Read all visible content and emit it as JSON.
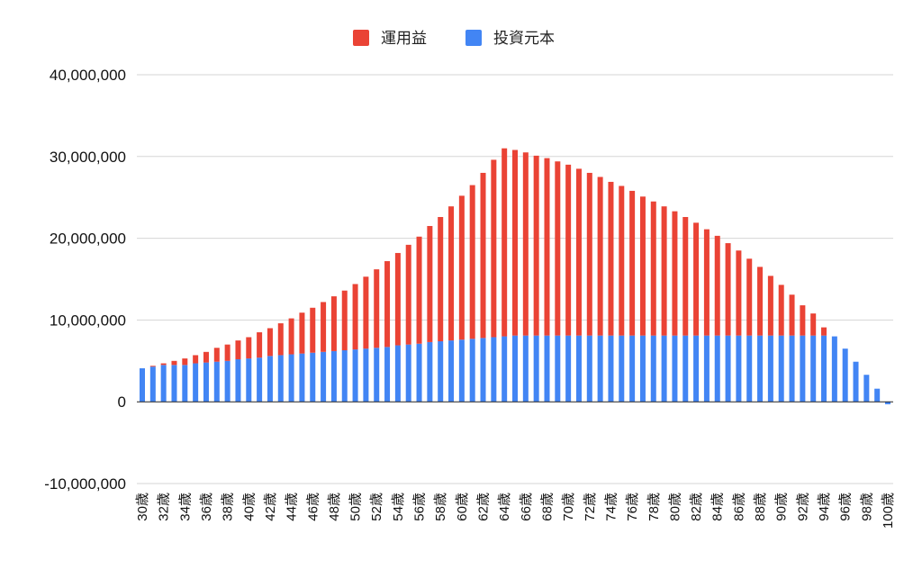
{
  "chart_data": {
    "type": "bar",
    "stacked": true,
    "title": "",
    "xlabel": "",
    "ylabel": "",
    "legend_position": "top",
    "grid": true,
    "ylim": [
      -10000000,
      40000000
    ],
    "yticks": [
      -10000000,
      0,
      10000000,
      20000000,
      30000000,
      40000000
    ],
    "ytick_labels": [
      "-10,000,000",
      "0",
      "10,000,000",
      "20,000,000",
      "30,000,000",
      "40,000,000"
    ],
    "categories": [
      "30歳",
      "31歳",
      "32歳",
      "33歳",
      "34歳",
      "35歳",
      "36歳",
      "37歳",
      "38歳",
      "39歳",
      "40歳",
      "41歳",
      "42歳",
      "43歳",
      "44歳",
      "45歳",
      "46歳",
      "47歳",
      "48歳",
      "49歳",
      "50歳",
      "51歳",
      "52歳",
      "53歳",
      "54歳",
      "55歳",
      "56歳",
      "57歳",
      "58歳",
      "59歳",
      "60歳",
      "61歳",
      "62歳",
      "63歳",
      "64歳",
      "65歳",
      "66歳",
      "67歳",
      "68歳",
      "69歳",
      "70歳",
      "71歳",
      "72歳",
      "73歳",
      "74歳",
      "75歳",
      "76歳",
      "77歳",
      "78歳",
      "79歳",
      "80歳",
      "81歳",
      "82歳",
      "83歳",
      "84歳",
      "85歳",
      "86歳",
      "87歳",
      "88歳",
      "89歳",
      "90歳",
      "91歳",
      "92歳",
      "93歳",
      "94歳",
      "95歳",
      "96歳",
      "97歳",
      "98歳",
      "99歳",
      "100歳"
    ],
    "xtick_labels": [
      "30歳",
      "32歳",
      "34歳",
      "36歳",
      "38歳",
      "40歳",
      "42歳",
      "44歳",
      "46歳",
      "48歳",
      "50歳",
      "52歳",
      "54歳",
      "56歳",
      "58歳",
      "60歳",
      "62歳",
      "64歳",
      "66歳",
      "68歳",
      "70歳",
      "72歳",
      "74歳",
      "76歳",
      "78歳",
      "80歳",
      "82歳",
      "84歳",
      "86歳",
      "88歳",
      "90歳",
      "92歳",
      "94歳",
      "96歳",
      "98歳",
      "100歳"
    ],
    "series": [
      {
        "name": "投資元本",
        "color": "#4285f4",
        "values": [
          4100000,
          4300000,
          4500000,
          4500000,
          4500000,
          4700000,
          4800000,
          4900000,
          5000000,
          5200000,
          5300000,
          5400000,
          5600000,
          5700000,
          5800000,
          5900000,
          6000000,
          6100000,
          6200000,
          6300000,
          6400000,
          6500000,
          6600000,
          6700000,
          6900000,
          7000000,
          7100000,
          7300000,
          7400000,
          7500000,
          7600000,
          7700000,
          7800000,
          7900000,
          8000000,
          8100000,
          8100000,
          8100000,
          8100000,
          8100000,
          8100000,
          8100000,
          8100000,
          8100000,
          8100000,
          8100000,
          8100000,
          8100000,
          8100000,
          8100000,
          8100000,
          8100000,
          8100000,
          8100000,
          8100000,
          8100000,
          8100000,
          8100000,
          8100000,
          8100000,
          8100000,
          8100000,
          8100000,
          8100000,
          8100000,
          8000000,
          6500000,
          4900000,
          3300000,
          1600000,
          -300000
        ]
      },
      {
        "name": "運用益",
        "color": "#ea4335",
        "values": [
          0,
          100000,
          200000,
          500000,
          800000,
          1000000,
          1300000,
          1700000,
          2000000,
          2300000,
          2600000,
          3100000,
          3400000,
          3900000,
          4400000,
          5000000,
          5500000,
          6100000,
          6700000,
          7300000,
          8000000,
          8800000,
          9600000,
          10500000,
          11300000,
          12200000,
          13100000,
          14200000,
          15200000,
          16400000,
          17600000,
          18800000,
          20200000,
          21700000,
          23000000,
          22700000,
          22400000,
          22000000,
          21700000,
          21300000,
          20900000,
          20400000,
          19900000,
          19400000,
          18800000,
          18300000,
          17700000,
          17000000,
          16400000,
          15800000,
          15200000,
          14500000,
          13800000,
          13000000,
          12200000,
          11300000,
          10400000,
          9400000,
          8400000,
          7300000,
          6200000,
          5000000,
          3700000,
          2700000,
          1000000,
          0,
          0,
          0,
          0,
          0,
          0
        ]
      }
    ]
  }
}
